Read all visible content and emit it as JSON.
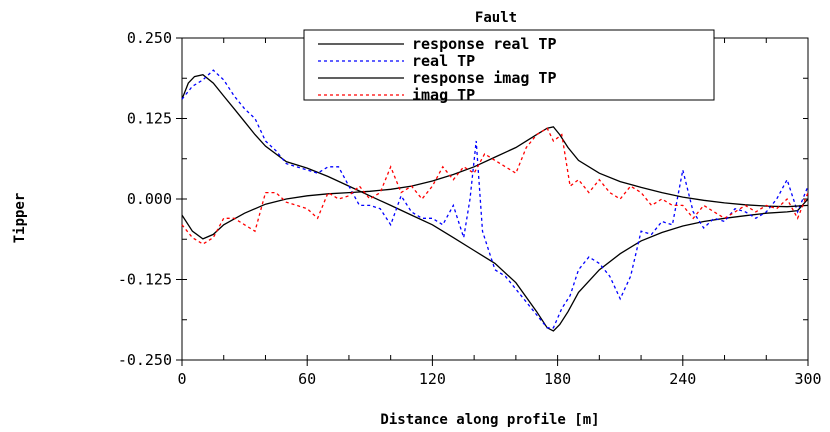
{
  "chart_data": {
    "type": "line",
    "title": "Fault",
    "xlabel": "Distance along profile [m]",
    "ylabel": "Tipper",
    "xlim": [
      0,
      300
    ],
    "ylim": [
      -0.25,
      0.25
    ],
    "x_ticks": [
      0,
      60,
      120,
      180,
      240,
      300
    ],
    "x_tick_labels": [
      "0",
      "60",
      "120",
      "180",
      "240",
      "300"
    ],
    "y_ticks": [
      0.25,
      0.125,
      0.0,
      -0.125,
      -0.25
    ],
    "y_tick_labels": [
      "0.250",
      "0.125",
      "0.000",
      "-0.125",
      "-0.250"
    ],
    "grid": false,
    "legend_position": "top-right",
    "series": [
      {
        "name": "response real TP",
        "color": "#000000",
        "style": "solid",
        "x": [
          0,
          3,
          6,
          10,
          15,
          20,
          25,
          30,
          35,
          40,
          50,
          60,
          70,
          80,
          90,
          100,
          110,
          120,
          130,
          140,
          150,
          160,
          170,
          175,
          178,
          181,
          185,
          190,
          200,
          210,
          220,
          230,
          240,
          250,
          260,
          270,
          280,
          290,
          295,
          300
        ],
        "y": [
          0.155,
          0.18,
          0.19,
          0.193,
          0.18,
          0.16,
          0.14,
          0.12,
          0.1,
          0.082,
          0.058,
          0.048,
          0.035,
          0.02,
          0.005,
          -0.01,
          -0.025,
          -0.04,
          -0.06,
          -0.08,
          -0.1,
          -0.13,
          -0.175,
          -0.2,
          -0.205,
          -0.195,
          -0.175,
          -0.145,
          -0.11,
          -0.085,
          -0.065,
          -0.052,
          -0.042,
          -0.035,
          -0.03,
          -0.026,
          -0.022,
          -0.02,
          -0.018,
          0.0
        ]
      },
      {
        "name": "real TP",
        "color": "#0000ff",
        "style": "dashed",
        "x": [
          0,
          5,
          10,
          15,
          20,
          25,
          30,
          35,
          40,
          45,
          50,
          55,
          60,
          65,
          70,
          75,
          80,
          85,
          90,
          95,
          100,
          105,
          110,
          115,
          120,
          125,
          130,
          135,
          138,
          141,
          144,
          147,
          150,
          155,
          160,
          165,
          170,
          175,
          178,
          182,
          186,
          190,
          195,
          200,
          205,
          210,
          215,
          220,
          225,
          230,
          235,
          240,
          245,
          250,
          255,
          260,
          265,
          270,
          275,
          280,
          285,
          290,
          295,
          300
        ],
        "y": [
          0.155,
          0.175,
          0.185,
          0.2,
          0.185,
          0.16,
          0.14,
          0.125,
          0.09,
          0.075,
          0.055,
          0.05,
          0.045,
          0.04,
          0.05,
          0.05,
          0.02,
          -0.01,
          -0.01,
          -0.015,
          -0.04,
          0.005,
          -0.02,
          -0.03,
          -0.03,
          -0.04,
          -0.01,
          -0.06,
          0.0,
          0.09,
          -0.05,
          -0.08,
          -0.11,
          -0.12,
          -0.14,
          -0.16,
          -0.18,
          -0.2,
          -0.2,
          -0.17,
          -0.15,
          -0.11,
          -0.09,
          -0.1,
          -0.12,
          -0.155,
          -0.12,
          -0.05,
          -0.055,
          -0.035,
          -0.04,
          0.045,
          -0.02,
          -0.045,
          -0.03,
          -0.035,
          -0.015,
          -0.02,
          -0.03,
          -0.02,
          0.0,
          0.03,
          -0.02,
          0.02
        ]
      },
      {
        "name": "response imag TP",
        "color": "#000000",
        "style": "solid",
        "x": [
          0,
          5,
          10,
          15,
          20,
          30,
          40,
          50,
          60,
          70,
          80,
          90,
          100,
          110,
          120,
          130,
          140,
          150,
          160,
          170,
          175,
          178,
          181,
          185,
          190,
          200,
          210,
          220,
          230,
          240,
          250,
          260,
          270,
          280,
          290,
          300
        ],
        "y": [
          -0.025,
          -0.05,
          -0.062,
          -0.055,
          -0.04,
          -0.022,
          -0.008,
          0.0,
          0.005,
          0.008,
          0.01,
          0.012,
          0.015,
          0.02,
          0.028,
          0.038,
          0.05,
          0.065,
          0.08,
          0.1,
          0.11,
          0.112,
          0.1,
          0.08,
          0.06,
          0.04,
          0.027,
          0.018,
          0.01,
          0.003,
          -0.002,
          -0.006,
          -0.009,
          -0.011,
          -0.012,
          -0.01
        ]
      },
      {
        "name": "imag TP",
        "color": "#ff0000",
        "style": "dashed",
        "x": [
          0,
          5,
          10,
          15,
          20,
          25,
          30,
          35,
          40,
          45,
          50,
          55,
          60,
          65,
          70,
          75,
          80,
          85,
          90,
          95,
          100,
          105,
          110,
          115,
          120,
          125,
          130,
          135,
          140,
          145,
          150,
          155,
          160,
          165,
          170,
          175,
          178,
          182,
          186,
          190,
          195,
          200,
          205,
          210,
          215,
          220,
          225,
          230,
          235,
          240,
          245,
          250,
          255,
          260,
          265,
          270,
          275,
          280,
          285,
          290,
          295,
          300
        ],
        "y": [
          -0.04,
          -0.06,
          -0.07,
          -0.06,
          -0.03,
          -0.03,
          -0.04,
          -0.05,
          0.01,
          0.01,
          -0.005,
          -0.01,
          -0.015,
          -0.03,
          0.01,
          0.0,
          0.005,
          0.02,
          0.0,
          0.01,
          0.05,
          0.01,
          0.02,
          0.0,
          0.02,
          0.05,
          0.03,
          0.05,
          0.04,
          0.07,
          0.06,
          0.05,
          0.04,
          0.08,
          0.1,
          0.11,
          0.09,
          0.1,
          0.02,
          0.03,
          0.01,
          0.03,
          0.01,
          0.0,
          0.02,
          0.01,
          -0.01,
          0.0,
          -0.01,
          -0.01,
          -0.03,
          -0.01,
          -0.02,
          -0.03,
          -0.02,
          -0.01,
          -0.02,
          -0.01,
          -0.015,
          0.0,
          -0.03,
          0.01
        ]
      }
    ]
  }
}
